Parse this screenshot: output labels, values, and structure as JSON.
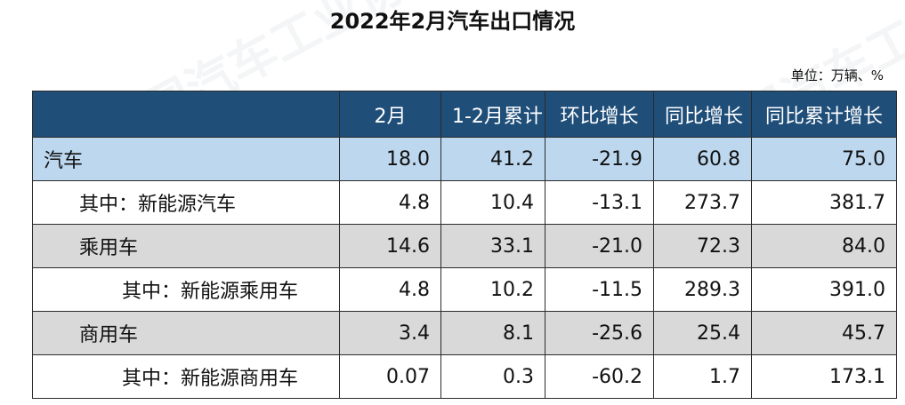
{
  "title": "2022年2月汽车出口情况",
  "unit": "单位：万辆、%",
  "table": {
    "headers": [
      "",
      "2月",
      "1-2月累计",
      "环比增长",
      "同比增长",
      "同比累计增长"
    ],
    "rows": [
      {
        "label": "汽车",
        "values": [
          "18.0",
          "41.2",
          "-21.9",
          "60.8",
          "75.0"
        ]
      },
      {
        "label": "其中：新能源汽车",
        "values": [
          "4.8",
          "10.4",
          "-13.1",
          "273.7",
          "381.7"
        ]
      },
      {
        "label": "乘用车",
        "values": [
          "14.6",
          "33.1",
          "-21.0",
          "72.3",
          "84.0"
        ]
      },
      {
        "label": "其中：新能源乘用车",
        "values": [
          "4.8",
          "10.2",
          "-11.5",
          "289.3",
          "391.0"
        ]
      },
      {
        "label": "商用车",
        "values": [
          "3.4",
          "8.1",
          "-25.6",
          "25.4",
          "45.7"
        ]
      },
      {
        "label": "其中：新能源商用车",
        "values": [
          "0.07",
          "0.3",
          "-60.2",
          "1.7",
          "173.1"
        ]
      }
    ]
  },
  "colors": {
    "header_bg": "#1f4e79",
    "total_row_bg": "#bdd7ee",
    "sub_row_bg": "#d9d9d9"
  }
}
